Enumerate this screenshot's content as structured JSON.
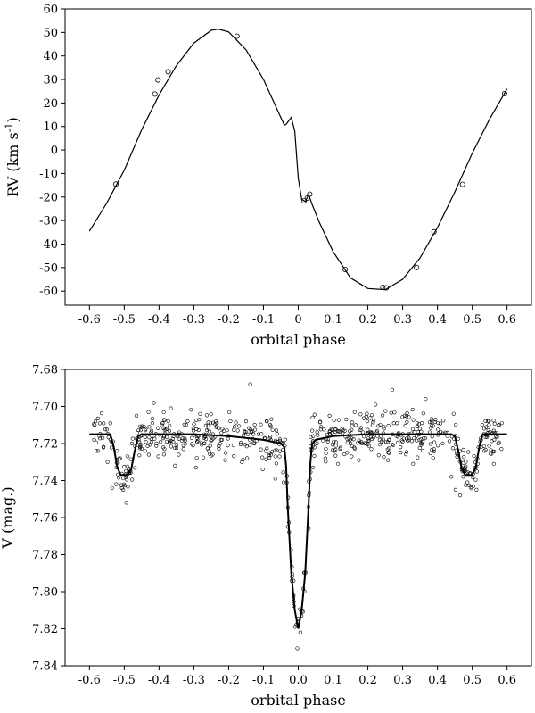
{
  "chart_data": [
    {
      "type": "scatter",
      "xlabel": "orbital phase",
      "ylabel": "RV (km s-1)",
      "ylabel_main": "RV (km s",
      "ylabel_sup": "-1",
      "ylabel_tail": ")",
      "xlim": [
        -0.67,
        0.67
      ],
      "ylim": [
        -66,
        60
      ],
      "xticks": [
        -0.6,
        -0.5,
        -0.4,
        -0.3,
        -0.2,
        -0.1,
        0,
        0.1,
        0.2,
        0.3,
        0.4,
        0.5,
        0.6
      ],
      "xtick_labels": [
        "-0.6",
        "-0.5",
        "-0.4",
        "-0.3",
        "-0.2",
        "-0.1",
        "0",
        "0.1",
        "0.2",
        "0.3",
        "0.4",
        "0.5",
        "0.6"
      ],
      "yticks": [
        60,
        50,
        40,
        30,
        20,
        10,
        0,
        -10,
        -20,
        -30,
        -40,
        -50,
        -60
      ],
      "ytick_labels": [
        "60",
        "50",
        "40",
        "30",
        "20",
        "10",
        "0",
        "-10",
        "-20",
        "-30",
        "-40",
        "-50",
        "-60"
      ],
      "grid": false,
      "series": [
        {
          "kind": "points",
          "x": [
            -0.524,
            -0.412,
            -0.403,
            -0.374,
            -0.176,
            0.017,
            0.026,
            0.033,
            0.135,
            0.243,
            0.253,
            0.34,
            0.39,
            0.472,
            0.593
          ],
          "y": [
            -14.5,
            23.8,
            29.8,
            33.3,
            48.4,
            -21.6,
            -20.4,
            -18.8,
            -50.8,
            -58.4,
            -58.6,
            -50.0,
            -34.8,
            -14.6,
            24.0
          ]
        },
        {
          "kind": "line",
          "x": [
            -0.6,
            -0.55,
            -0.5,
            -0.45,
            -0.4,
            -0.35,
            -0.3,
            -0.25,
            -0.23,
            -0.2,
            -0.15,
            -0.1,
            -0.06,
            -0.04,
            -0.035,
            -0.02,
            -0.01,
            0.0,
            0.01,
            0.02,
            0.03,
            0.04,
            0.06,
            0.1,
            0.15,
            0.2,
            0.25,
            0.3,
            0.35,
            0.4,
            0.45,
            0.5,
            0.55,
            0.6
          ],
          "y": [
            -34.5,
            -22.5,
            -8.6,
            8.6,
            23.4,
            35.9,
            45.5,
            50.9,
            51.4,
            50.2,
            42.6,
            30.0,
            17.0,
            10.6,
            10.9,
            13.9,
            8.0,
            -12.0,
            -21.0,
            -21.9,
            -19.0,
            -23.2,
            -30.6,
            -43.2,
            -54.4,
            -58.9,
            -59.4,
            -55.0,
            -45.9,
            -33.0,
            -17.8,
            -1.4,
            13.2,
            26.0
          ]
        }
      ]
    },
    {
      "type": "scatter",
      "xlabel": "orbital phase",
      "ylabel": "V (mag.)",
      "xlim": [
        -0.67,
        0.67
      ],
      "ylim": [
        7.84,
        7.68
      ],
      "y_inverted": true,
      "xticks": [
        -0.6,
        -0.5,
        -0.4,
        -0.3,
        -0.2,
        -0.1,
        0,
        0.1,
        0.2,
        0.3,
        0.4,
        0.5,
        0.6
      ],
      "xtick_labels": [
        "-0.6",
        "-0.5",
        "-0.4",
        "-0.3",
        "-0.2",
        "-0.1",
        "0.0",
        "0.1",
        "0.2",
        "0.3",
        "0.4",
        "0.5",
        "0.6"
      ],
      "yticks": [
        7.68,
        7.7,
        7.72,
        7.74,
        7.76,
        7.78,
        7.8,
        7.82,
        7.84
      ],
      "ytick_labels": [
        "7.68",
        "7.70",
        "7.72",
        "7.74",
        "7.76",
        "7.78",
        "7.80",
        "7.82",
        "7.84"
      ],
      "grid": false,
      "series": [
        {
          "kind": "line",
          "x": [
            -0.6,
            -0.54,
            -0.53,
            -0.52,
            -0.51,
            -0.5,
            -0.49,
            -0.48,
            -0.47,
            -0.46,
            -0.45,
            -0.3,
            -0.2,
            -0.1,
            -0.05,
            -0.04,
            -0.035,
            -0.03,
            -0.02,
            -0.01,
            0.0,
            0.01,
            0.02,
            0.03,
            0.035,
            0.04,
            0.05,
            0.1,
            0.2,
            0.3,
            0.44,
            0.45,
            0.46,
            0.47,
            0.48,
            0.49,
            0.5,
            0.51,
            0.52,
            0.53,
            0.54,
            0.6
          ],
          "y": [
            7.715,
            7.715,
            7.722,
            7.733,
            7.737,
            7.737,
            7.737,
            7.734,
            7.724,
            7.716,
            7.715,
            7.715,
            7.716,
            7.718,
            7.72,
            7.722,
            7.732,
            7.755,
            7.79,
            7.81,
            7.82,
            7.81,
            7.79,
            7.752,
            7.73,
            7.72,
            7.718,
            7.716,
            7.715,
            7.715,
            7.715,
            7.716,
            7.724,
            7.734,
            7.737,
            7.737,
            7.737,
            7.733,
            7.722,
            7.715,
            7.715,
            7.715
          ]
        },
        {
          "kind": "points-scatter",
          "count": 620,
          "x": [
            -0.585,
            -0.575,
            -0.562,
            -0.548,
            -0.535,
            -0.523,
            -0.512,
            -0.503,
            -0.494,
            -0.486,
            -0.478,
            -0.465,
            -0.452,
            -0.44,
            -0.428,
            -0.415,
            -0.402,
            -0.39,
            -0.378,
            -0.366,
            -0.354,
            -0.342,
            -0.33,
            -0.318,
            -0.306,
            -0.294,
            -0.282,
            -0.27,
            -0.258,
            -0.246,
            -0.234,
            -0.222,
            -0.21,
            -0.198,
            -0.186,
            -0.174,
            -0.162,
            -0.15,
            -0.138,
            -0.126,
            -0.114,
            -0.102,
            -0.09,
            -0.078,
            -0.066,
            -0.054,
            -0.042,
            -0.03,
            -0.018,
            -0.006,
            0.006,
            0.018,
            0.03,
            0.042,
            0.054,
            0.066,
            0.078,
            0.09,
            0.102,
            0.114,
            0.126,
            0.138,
            0.15,
            0.162,
            0.174,
            0.186,
            0.198,
            0.21,
            0.222,
            0.234,
            0.246,
            0.258,
            0.27,
            0.282,
            0.294,
            0.306,
            0.318,
            0.33,
            0.342,
            0.354,
            0.366,
            0.378,
            0.39,
            0.402,
            0.415,
            0.428,
            0.44,
            0.452,
            0.465,
            0.478,
            0.486,
            0.494,
            0.503,
            0.512,
            0.523,
            0.535,
            0.548,
            0.562,
            0.575,
            0.585
          ],
          "y": [
            7.71,
            7.724,
            7.717,
            7.73,
            7.744,
            7.742,
            7.728,
            7.745,
            7.752,
            7.736,
            7.72,
            7.705,
            7.716,
            7.724,
            7.711,
            7.698,
            7.727,
            7.709,
            7.719,
            7.701,
            7.732,
            7.714,
            7.723,
            7.708,
            7.717,
            7.733,
            7.704,
            7.72,
            7.712,
            7.726,
            7.709,
            7.718,
            7.729,
            7.703,
            7.721,
            7.713,
            7.73,
            7.708,
            7.688,
            7.72,
            7.715,
            7.734,
            7.708,
            7.726,
            7.739,
            7.727,
            7.741,
            7.765,
            7.792,
            7.818,
            7.822,
            7.8,
            7.766,
            7.733,
            7.72,
            7.711,
            7.728,
            7.705,
            7.719,
            7.731,
            7.712,
            7.707,
            7.72,
            7.703,
            7.729,
            7.714,
            7.708,
            7.723,
            7.699,
            7.718,
            7.712,
            7.729,
            7.691,
            7.716,
            7.722,
            7.705,
            7.717,
            7.731,
            7.709,
            7.72,
            7.696,
            7.714,
            7.723,
            7.709,
            7.72,
            7.716,
            7.738,
            7.745,
            7.748,
            7.735,
            7.741,
            7.736,
            7.743,
            7.745,
            7.719,
            7.724,
            7.71,
            7.731,
            7.72,
            7.709
          ]
        }
      ]
    }
  ]
}
